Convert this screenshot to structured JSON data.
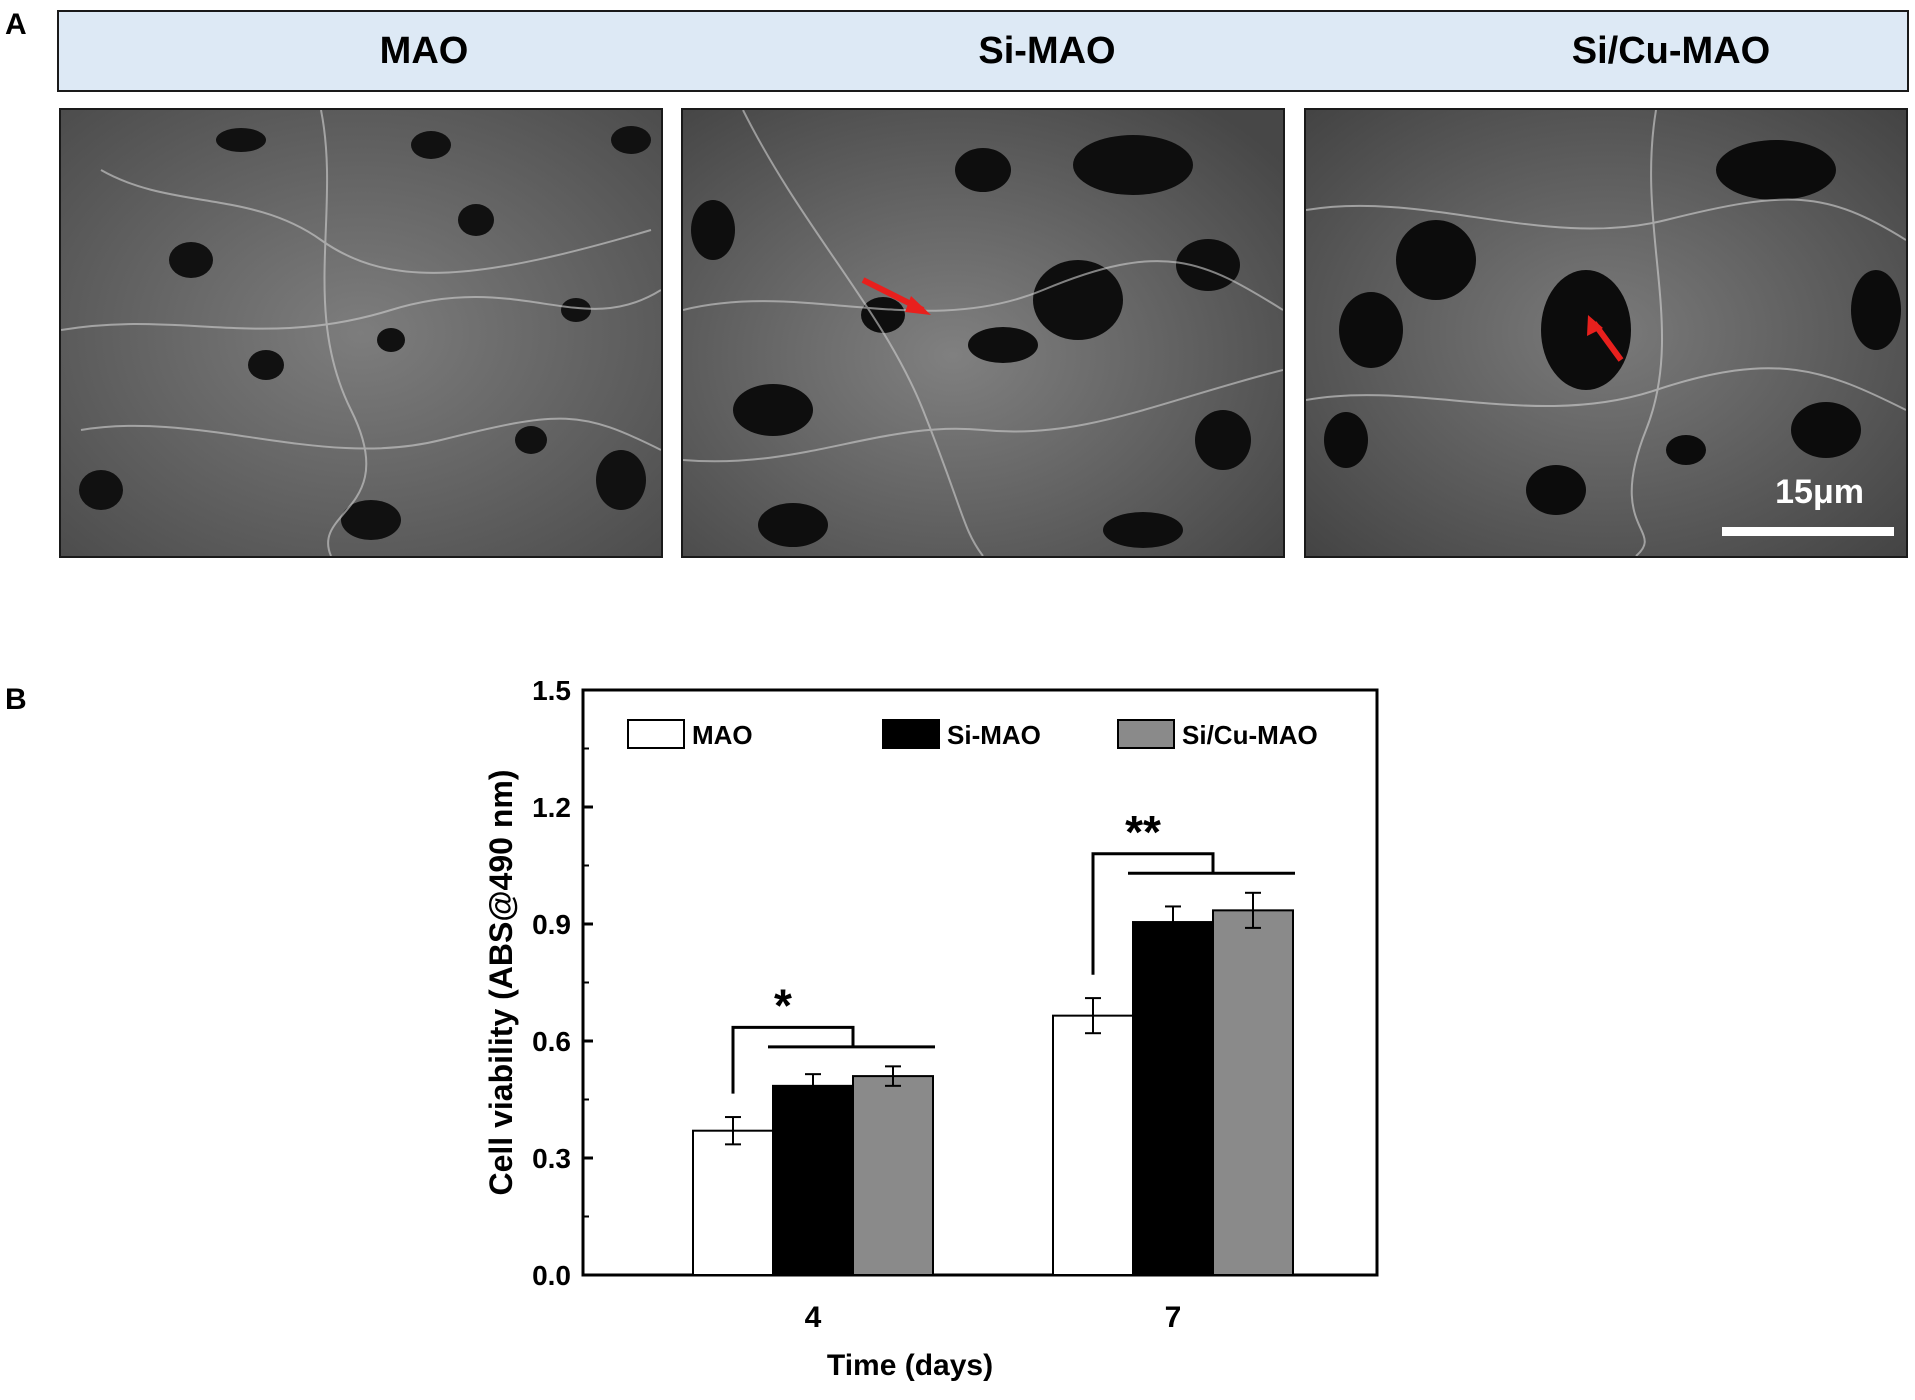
{
  "panel_a": {
    "letter": "A",
    "columns": [
      {
        "label": "MAO"
      },
      {
        "label": "Si-MAO"
      },
      {
        "label": "Si/Cu-MAO"
      }
    ],
    "scale_bar": "15μm",
    "arrow_color": "#e8201d"
  },
  "panel_b": {
    "letter": "B"
  },
  "chart_data": {
    "type": "bar",
    "categories": [
      "4",
      "7"
    ],
    "series": [
      {
        "name": "MAO",
        "values": [
          0.37,
          0.665
        ],
        "errors": [
          0.035,
          0.045
        ],
        "color": "#ffffff"
      },
      {
        "name": "Si-MAO",
        "values": [
          0.485,
          0.905
        ],
        "errors": [
          0.03,
          0.04
        ],
        "color": "#000000"
      },
      {
        "name": "Si/Cu-MAO",
        "values": [
          0.51,
          0.935
        ],
        "errors": [
          0.025,
          0.045
        ],
        "color": "#8a8a8a"
      }
    ],
    "xlabel": "Time (days)",
    "ylabel": "Cell viability (ABS@490 nm)",
    "ylim": [
      0,
      1.5
    ],
    "yticks": [
      "0.0",
      "0.3",
      "0.6",
      "0.9",
      "1.2",
      "1.5"
    ],
    "legend_position": "top",
    "annotations": [
      "*",
      "**"
    ]
  }
}
